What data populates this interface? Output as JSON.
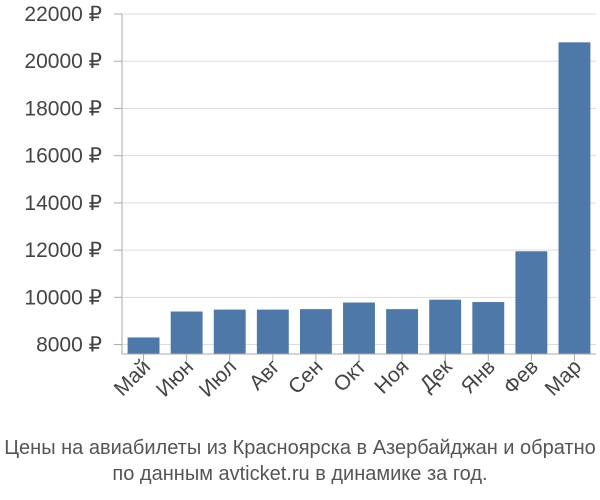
{
  "colors": {
    "bar": "#4e78a8",
    "grid": "#dddddd",
    "axis": "#aaaaaa",
    "text": "#444444"
  },
  "chart_data": {
    "type": "bar",
    "categories": [
      "Май",
      "Июн",
      "Июл",
      "Авг",
      "Сен",
      "Окт",
      "Ноя",
      "Дек",
      "Янв",
      "Фев",
      "Мар"
    ],
    "values": [
      8300,
      9400,
      9480,
      9480,
      9500,
      9780,
      9500,
      9900,
      9800,
      11950,
      20800
    ],
    "yticks": [
      "8000 ₽",
      "10000 ₽",
      "12000 ₽",
      "14000 ₽",
      "16000 ₽",
      "18000 ₽",
      "20000 ₽",
      "22000 ₽"
    ],
    "ylim": [
      7600,
      22000
    ],
    "grid": true,
    "legend": "none",
    "title": "",
    "xlabel": "",
    "ylabel": ""
  },
  "caption": {
    "line1": "Цены на авиабилеты из Красноярска в Азербайджан и обратно",
    "line2": "по данным avticket.ru в динамике за год."
  }
}
